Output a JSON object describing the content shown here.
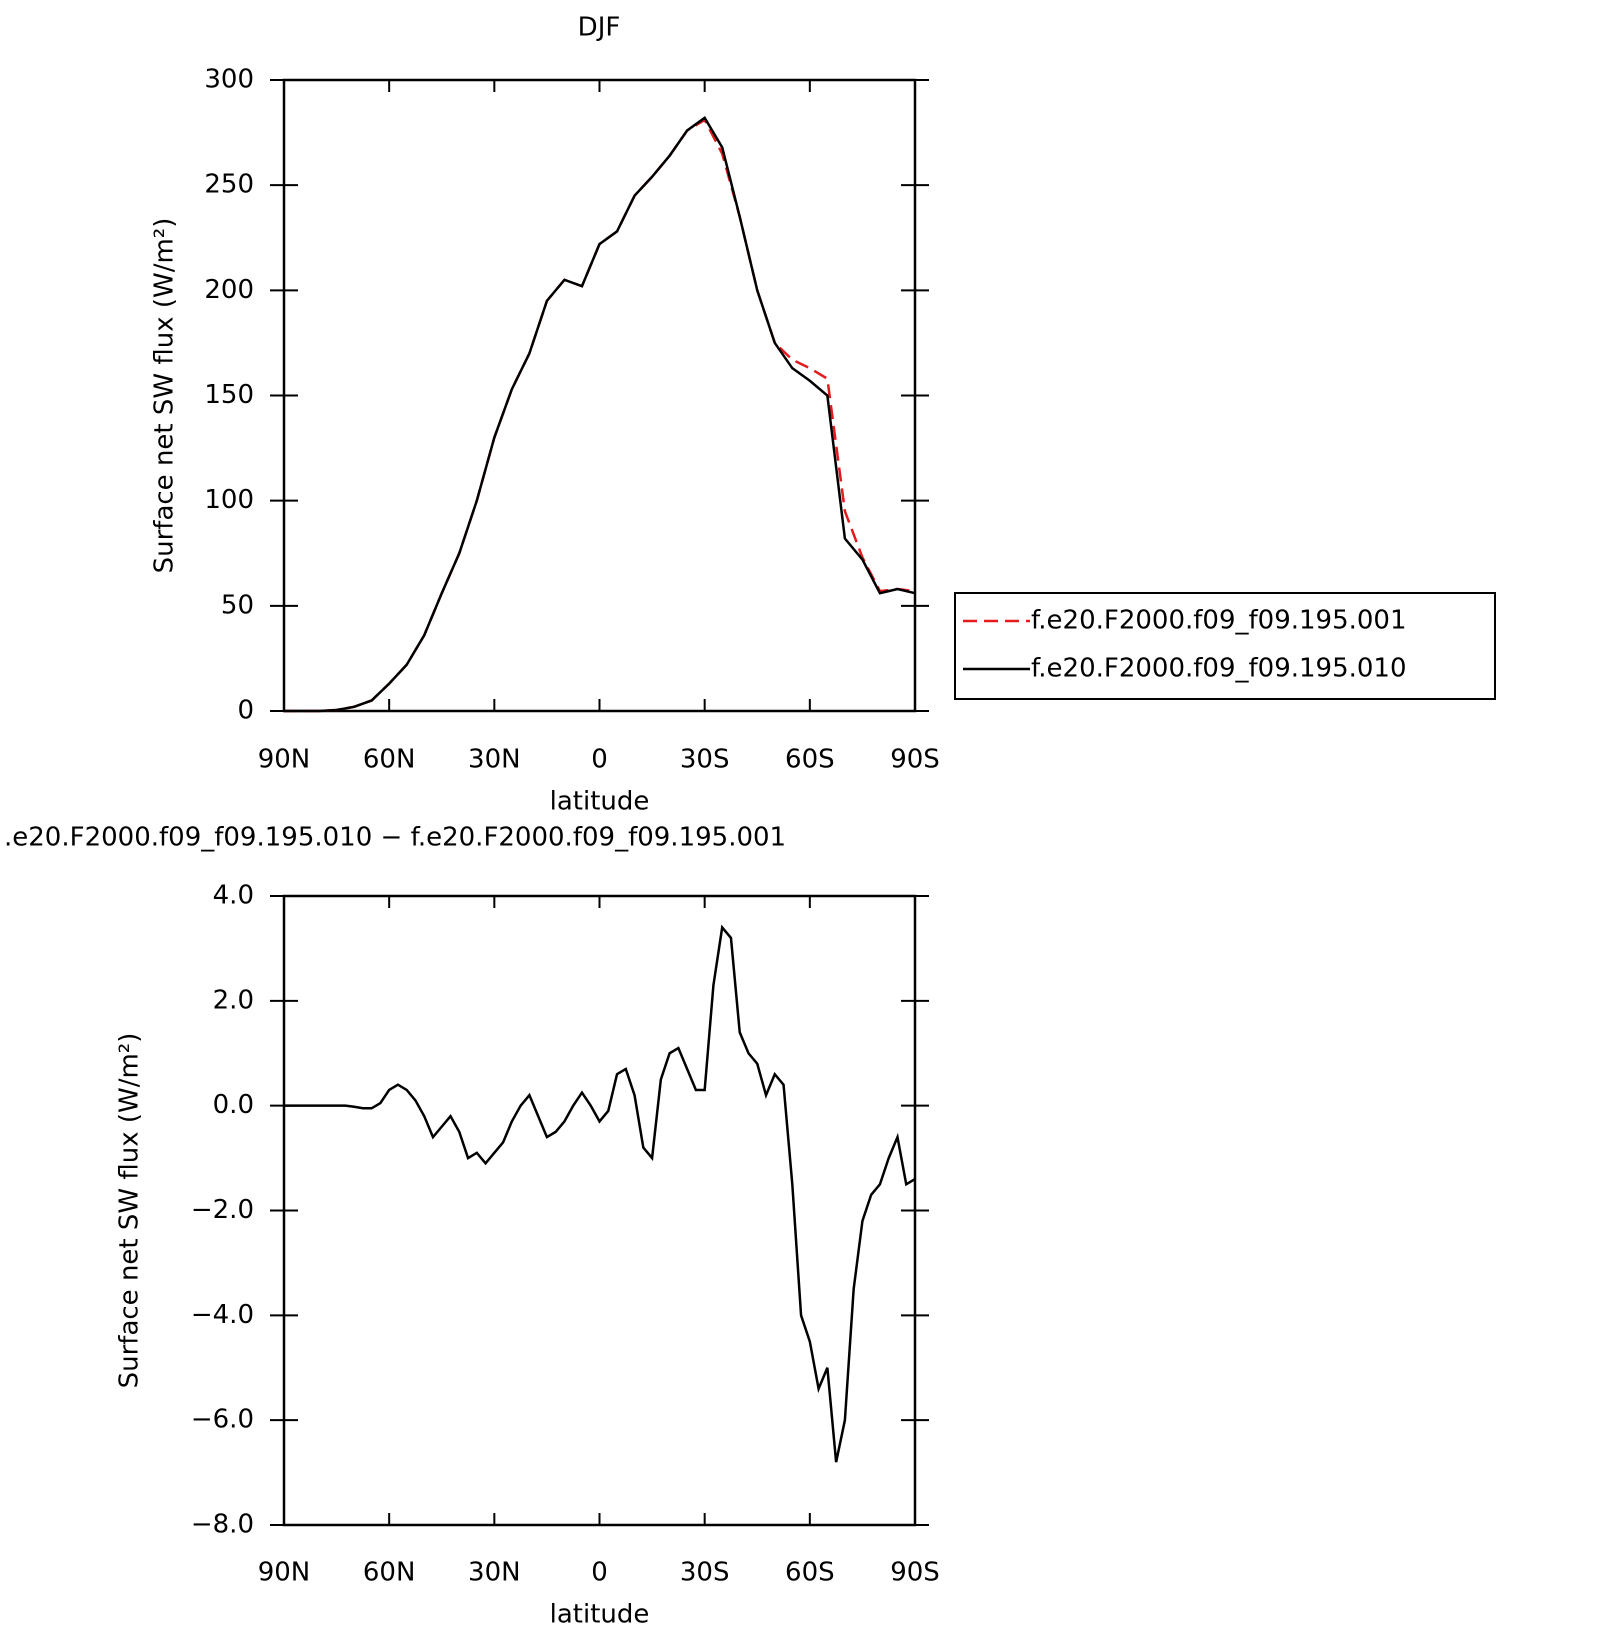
{
  "chart_data": [
    {
      "type": "line",
      "title": "DJF",
      "xlabel": "latitude",
      "ylabel": "Surface net SW flux (W/m²)",
      "x": [
        90,
        85,
        80,
        75,
        70,
        65,
        60,
        55,
        50,
        45,
        40,
        35,
        30,
        25,
        20,
        15,
        10,
        5,
        0,
        -5,
        -10,
        -15,
        -20,
        -25,
        -30,
        -35,
        -40,
        -45,
        -50,
        -55,
        -60,
        -65,
        -70,
        -75,
        -80,
        -85,
        -90
      ],
      "series": [
        {
          "name": "f.e20.F2000.f09_f09.195.001",
          "color": "#e41a1c",
          "linestyle": "dashed",
          "values": [
            0,
            0,
            0,
            0.5,
            2,
            5,
            13,
            22,
            36,
            56,
            75,
            100,
            130,
            153,
            170,
            195,
            205,
            202,
            222,
            228,
            245,
            254,
            264,
            276,
            281,
            265,
            235,
            200,
            175,
            167,
            163,
            158,
            95,
            73,
            57,
            58,
            57
          ]
        },
        {
          "name": "f.e20.F2000.f09_f09.195.010",
          "color": "#000000",
          "linestyle": "solid",
          "values": [
            0,
            0,
            0,
            0.5,
            2,
            5,
            13,
            22,
            36,
            56,
            75,
            100,
            130,
            153,
            170,
            195,
            205,
            202,
            222,
            228,
            245,
            254,
            264,
            276,
            282,
            268,
            235,
            200,
            175,
            163,
            157,
            150,
            82,
            72,
            56,
            58,
            56
          ]
        }
      ],
      "xlim": [
        90,
        -90
      ],
      "xticks": [
        {
          "value": 90,
          "label": "90N"
        },
        {
          "value": 60,
          "label": "60N"
        },
        {
          "value": 30,
          "label": "30N"
        },
        0,
        {
          "value": -30,
          "label": "30S"
        },
        {
          "value": -60,
          "label": "60S"
        },
        {
          "value": -90,
          "label": "90S"
        }
      ],
      "ylim": [
        0,
        300
      ],
      "yticks": [
        0,
        50,
        100,
        150,
        200,
        250,
        300
      ],
      "legend": "right"
    },
    {
      "type": "line",
      "title": ".e20.F2000.f09_f09.195.010 − f.e20.F2000.f09_f09.195.001",
      "xlabel": "latitude",
      "ylabel": "Surface net SW flux (W/m²)",
      "x": [
        90,
        87.5,
        85,
        82.5,
        80,
        77.5,
        75,
        72.5,
        70,
        67.5,
        65,
        62.5,
        60,
        57.5,
        55,
        52.5,
        50,
        47.5,
        45,
        42.5,
        40,
        37.5,
        35,
        32.5,
        30,
        27.5,
        25,
        22.5,
        20,
        17.5,
        15,
        12.5,
        10,
        7.5,
        5,
        2.5,
        0,
        -2.5,
        -5,
        -7.5,
        -10,
        -12.5,
        -15,
        -17.5,
        -20,
        -22.5,
        -25,
        -27.5,
        -30,
        -32.5,
        -35,
        -37.5,
        -40,
        -42.5,
        -45,
        -47.5,
        -50,
        -52.5,
        -55,
        -57.5,
        -60,
        -62.5,
        -65,
        -67.5,
        -70,
        -72.5,
        -75,
        -77.5,
        -80,
        -82.5,
        -85,
        -87.5,
        -90
      ],
      "values": [
        0,
        0,
        0,
        0,
        0,
        0,
        0,
        0,
        -0.02,
        -0.05,
        -0.05,
        0.05,
        0.3,
        0.4,
        0.3,
        0.1,
        -0.2,
        -0.6,
        -0.4,
        -0.2,
        -0.5,
        -1.0,
        -0.9,
        -1.1,
        -0.9,
        -0.7,
        -0.3,
        0.0,
        0.2,
        -0.2,
        -0.6,
        -0.5,
        -0.3,
        0.0,
        0.25,
        0.0,
        -0.3,
        -0.1,
        0.6,
        0.7,
        0.2,
        -0.8,
        -1.0,
        0.5,
        1.0,
        1.1,
        0.7,
        0.3,
        0.3,
        2.3,
        3.4,
        3.2,
        1.4,
        1.0,
        0.8,
        0.2,
        0.6,
        0.4,
        -1.5,
        -4.0,
        -4.5,
        -5.4,
        -5.0,
        -6.8,
        -6.0,
        -3.5,
        -2.2,
        -1.7,
        -1.5,
        -1.0,
        -0.6,
        -1.5,
        -1.4
      ],
      "color": "#000000",
      "xlim": [
        90,
        -90
      ],
      "xticks": [
        {
          "value": 90,
          "label": "90N"
        },
        {
          "value": 60,
          "label": "60N"
        },
        {
          "value": 30,
          "label": "30N"
        },
        0,
        {
          "value": -30,
          "label": "30S"
        },
        {
          "value": -60,
          "label": "60S"
        },
        {
          "value": -90,
          "label": "90S"
        }
      ],
      "ylim": [
        -8,
        4
      ],
      "yticks": [
        {
          "value": -8,
          "label": "−8.0"
        },
        {
          "value": -6,
          "label": "−6.0"
        },
        {
          "value": -4,
          "label": "−4.0"
        },
        {
          "value": -2,
          "label": "−2.0"
        },
        {
          "value": 0,
          "label": "0.0"
        },
        {
          "value": 2,
          "label": "2.0"
        },
        {
          "value": 4,
          "label": "4.0"
        }
      ]
    }
  ]
}
